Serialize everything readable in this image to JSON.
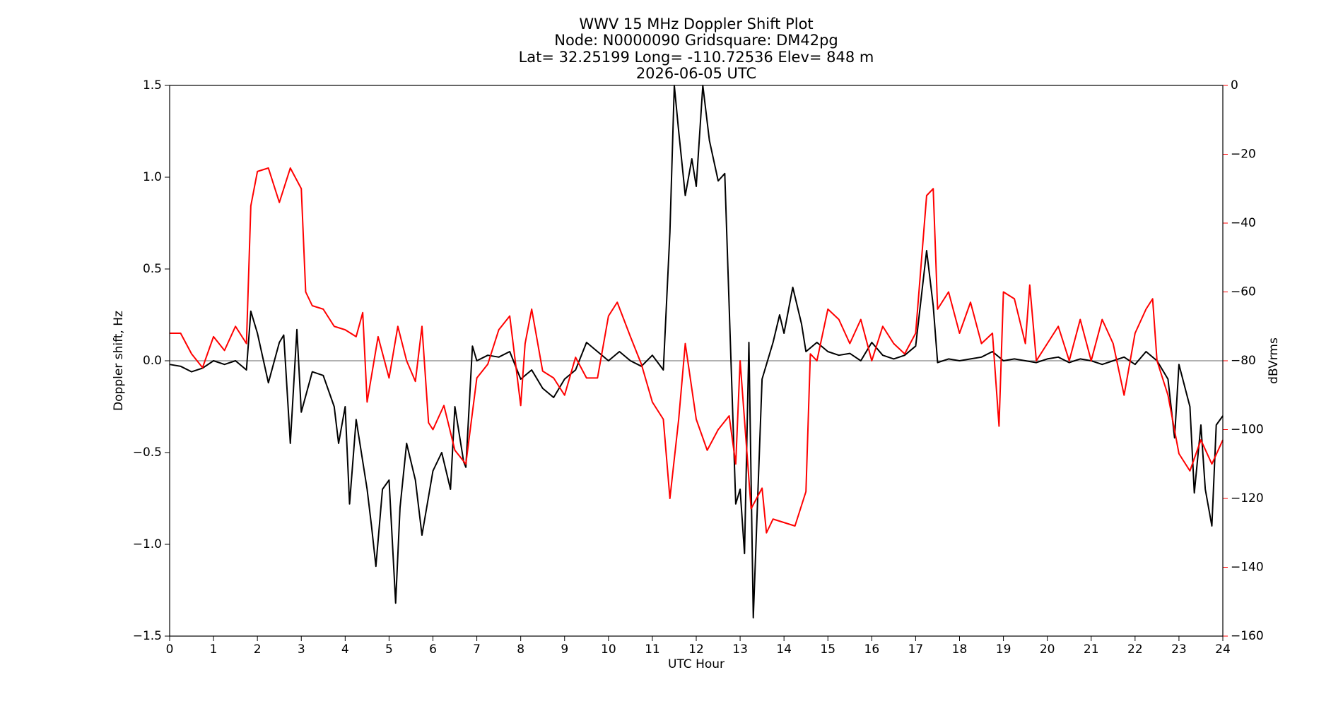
{
  "chart_data": {
    "type": "line",
    "title": "WWV 15 MHz Doppler Shift Plot",
    "subtitle_lines": [
      "Node:  N0000090     Gridsquare:  DM42pg",
      "Lat= 32.25199    Long= -110.72536    Elev= 848 m",
      "2026-06-05  UTC"
    ],
    "x_label": "UTC Hour",
    "y_label": "Doppler shift, Hz",
    "y2_label": "dBVrms",
    "y2_color": "#ff0000",
    "xlim": [
      0,
      24
    ],
    "xticks": [
      0,
      1,
      2,
      3,
      4,
      5,
      6,
      7,
      8,
      9,
      10,
      11,
      12,
      13,
      14,
      15,
      16,
      17,
      18,
      19,
      20,
      21,
      22,
      23,
      24
    ],
    "ylim": [
      -1.5,
      1.5
    ],
    "yticks": [
      {
        "value": -1.5,
        "label": "−1.5"
      },
      {
        "value": -1,
        "label": "−1.0"
      },
      {
        "value": -0.5,
        "label": "−0.5"
      },
      {
        "value": 0,
        "label": "0.0"
      },
      0.5,
      {
        "value": 1,
        "label": "1.0"
      },
      1.5
    ],
    "y2lim": [
      -160,
      0
    ],
    "y2ticks": [
      {
        "value": -160,
        "label": "−160"
      },
      {
        "value": -140,
        "label": "−140"
      },
      {
        "value": -120,
        "label": "−120"
      },
      {
        "value": -100,
        "label": "−100"
      },
      {
        "value": -80,
        "label": "−80"
      },
      {
        "value": -60,
        "label": "−60"
      },
      {
        "value": -40,
        "label": "−40"
      },
      {
        "value": -20,
        "label": "−20"
      },
      0
    ],
    "reference_line": 0,
    "reference_color": "#999999",
    "series": [
      {
        "color": "#000000",
        "axis": "y",
        "x": [
          0,
          0.25,
          0.5,
          0.75,
          1,
          1.25,
          1.5,
          1.75,
          1.85,
          2,
          2.25,
          2.5,
          2.6,
          2.75,
          2.9,
          3,
          3.25,
          3.5,
          3.75,
          3.85,
          4,
          4.1,
          4.25,
          4.5,
          4.6,
          4.7,
          4.85,
          5,
          5.15,
          5.25,
          5.4,
          5.6,
          5.75,
          6,
          6.2,
          6.4,
          6.5,
          6.7,
          6.75,
          6.9,
          7,
          7.25,
          7.5,
          7.75,
          8,
          8.25,
          8.5,
          8.75,
          9,
          9.25,
          9.5,
          9.75,
          10,
          10.25,
          10.5,
          10.75,
          11,
          11.25,
          11.4,
          11.5,
          11.6,
          11.75,
          11.9,
          12,
          12.15,
          12.3,
          12.5,
          12.65,
          12.75,
          12.9,
          13,
          13.1,
          13.2,
          13.3,
          13.5,
          13.75,
          13.9,
          14,
          14.2,
          14.4,
          14.5,
          14.75,
          15,
          15.25,
          15.5,
          15.75,
          16,
          16.25,
          16.5,
          16.75,
          17,
          17.25,
          17.4,
          17.5,
          17.75,
          18,
          18.25,
          18.5,
          18.75,
          19,
          19.25,
          19.5,
          19.75,
          20,
          20.25,
          20.5,
          20.75,
          21,
          21.25,
          21.5,
          21.75,
          22,
          22.25,
          22.5,
          22.75,
          22.9,
          23,
          23.25,
          23.35,
          23.5,
          23.6,
          23.75,
          23.85,
          24
        ],
        "values": [
          -0.02,
          -0.03,
          -0.06,
          -0.04,
          0,
          -0.02,
          0,
          -0.05,
          0.27,
          0.15,
          -0.12,
          0.1,
          0.14,
          -0.45,
          0.17,
          -0.28,
          -0.06,
          -0.08,
          -0.25,
          -0.45,
          -0.25,
          -0.78,
          -0.32,
          -0.7,
          -0.9,
          -1.12,
          -0.7,
          -0.65,
          -1.32,
          -0.8,
          -0.45,
          -0.65,
          -0.95,
          -0.6,
          -0.5,
          -0.7,
          -0.25,
          -0.55,
          -0.58,
          0.08,
          0,
          0.03,
          0.02,
          0.05,
          -0.1,
          -0.05,
          -0.15,
          -0.2,
          -0.1,
          -0.05,
          0.1,
          0.05,
          0,
          0.05,
          0,
          -0.03,
          0.03,
          -0.05,
          0.7,
          1.5,
          1.25,
          0.9,
          1.1,
          0.95,
          1.5,
          1.2,
          0.98,
          1.02,
          0.3,
          -0.78,
          -0.7,
          -1.05,
          0.1,
          -1.4,
          -0.1,
          0.1,
          0.25,
          0.15,
          0.4,
          0.2,
          0.05,
          0.1,
          0.05,
          0.03,
          0.04,
          0,
          0.1,
          0.03,
          0.01,
          0.03,
          0.08,
          0.6,
          0.3,
          -0.01,
          0.01,
          0,
          0.01,
          0.02,
          0.05,
          0,
          0.01,
          0,
          -0.01,
          0.01,
          0.02,
          -0.01,
          0.01,
          0,
          -0.02,
          0,
          0.02,
          -0.02,
          0.05,
          0,
          -0.1,
          -0.42,
          -0.02,
          -0.25,
          -0.72,
          -0.35,
          -0.7,
          -0.9,
          -0.35,
          -0.3
        ]
      },
      {
        "color": "#ff0000",
        "axis": "y2",
        "x": [
          0,
          0.25,
          0.5,
          0.75,
          1,
          1.25,
          1.5,
          1.75,
          1.85,
          2,
          2.25,
          2.5,
          2.75,
          3,
          3.1,
          3.25,
          3.5,
          3.75,
          4,
          4.25,
          4.4,
          4.5,
          4.75,
          5,
          5.2,
          5.4,
          5.6,
          5.75,
          5.9,
          6,
          6.25,
          6.5,
          6.75,
          7,
          7.25,
          7.5,
          7.75,
          8,
          8.1,
          8.25,
          8.5,
          8.75,
          9,
          9.25,
          9.5,
          9.75,
          10,
          10.2,
          10.5,
          10.75,
          11,
          11.25,
          11.4,
          11.6,
          11.75,
          12,
          12.25,
          12.5,
          12.75,
          12.9,
          13,
          13.25,
          13.5,
          13.6,
          13.75,
          14,
          14.25,
          14.5,
          14.6,
          14.75,
          15,
          15.25,
          15.5,
          15.75,
          16,
          16.25,
          16.5,
          16.75,
          17,
          17.25,
          17.4,
          17.5,
          17.75,
          18,
          18.25,
          18.5,
          18.75,
          18.9,
          19,
          19.25,
          19.5,
          19.6,
          19.75,
          20,
          20.25,
          20.5,
          20.75,
          21,
          21.25,
          21.5,
          21.75,
          22,
          22.25,
          22.4,
          22.5,
          22.75,
          23,
          23.25,
          23.5,
          23.75,
          24
        ],
        "values": [
          -72,
          -72,
          -78,
          -82,
          -73,
          -77,
          -70,
          -75,
          -35,
          -25,
          -24,
          -34,
          -24,
          -30,
          -60,
          -64,
          -65,
          -70,
          -71,
          -73,
          -66,
          -92,
          -73,
          -85,
          -70,
          -80,
          -86,
          -70,
          -98,
          -100,
          -93,
          -106,
          -110,
          -85,
          -81,
          -71,
          -67,
          -93,
          -75,
          -65,
          -83,
          -85,
          -90,
          -79,
          -85,
          -85,
          -67,
          -63,
          -73,
          -81,
          -92,
          -97,
          -120,
          -97,
          -75,
          -97,
          -106,
          -100,
          -96,
          -110,
          -80,
          -123,
          -117,
          -130,
          -126,
          -127,
          -128,
          -118,
          -78,
          -80,
          -65,
          -68,
          -75,
          -68,
          -80,
          -70,
          -75,
          -78,
          -72,
          -32,
          -30,
          -65,
          -60,
          -72,
          -63,
          -75,
          -72,
          -99,
          -60,
          -62,
          -75,
          -58,
          -80,
          -75,
          -70,
          -80,
          -68,
          -80,
          -68,
          -75,
          -90,
          -72,
          -65,
          -62,
          -80,
          -90,
          -107,
          -112,
          -103,
          -110,
          -103
        ]
      }
    ]
  }
}
